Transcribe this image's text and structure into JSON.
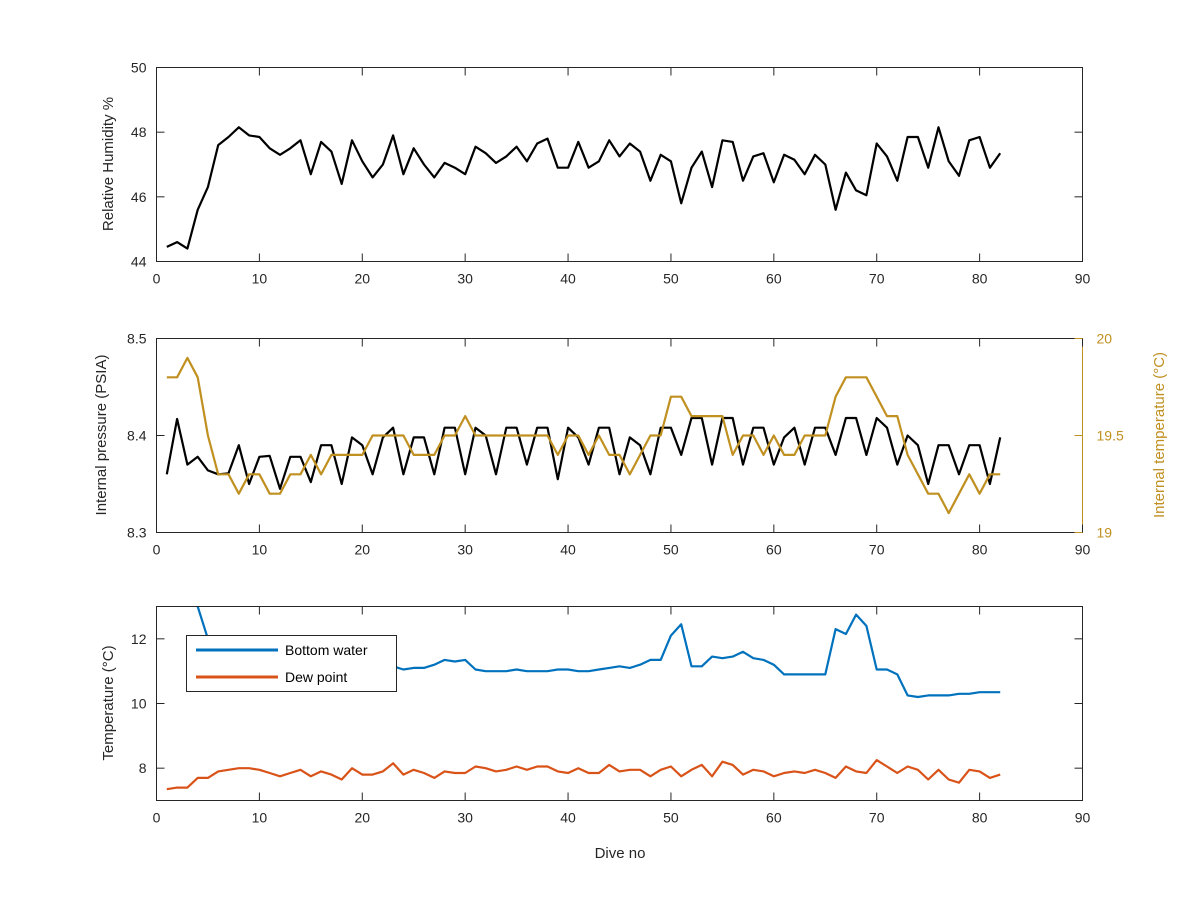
{
  "chart_data": [
    {
      "type": "line",
      "title": "",
      "xlabel": "",
      "ylabel": "Relative Humidity %",
      "xlim": [
        0,
        90
      ],
      "ylim": [
        44,
        50
      ],
      "xticks": [
        0,
        10,
        20,
        30,
        40,
        50,
        60,
        70,
        80,
        90
      ],
      "yticks": [
        44,
        46,
        48,
        50
      ],
      "colors": {
        "humidity": "#000000"
      },
      "series": [
        {
          "x": [
            1,
            2,
            3,
            4,
            5,
            6,
            7,
            8,
            9,
            10,
            11,
            12,
            13,
            14,
            15,
            16,
            17,
            18,
            19,
            20,
            21,
            22,
            23,
            24,
            25,
            26,
            27,
            28,
            29,
            30,
            31,
            32,
            33,
            34,
            35,
            36,
            37,
            38,
            39,
            40,
            41,
            42,
            43,
            44,
            45,
            46,
            47,
            48,
            49,
            50,
            51,
            52,
            53,
            54,
            55,
            56,
            57,
            58,
            59,
            60,
            61,
            62,
            63,
            64,
            65,
            66,
            67,
            68,
            69,
            70,
            71,
            72,
            73,
            74,
            75,
            76,
            77,
            78,
            79,
            80,
            81,
            82
          ],
          "values": [
            44.45,
            44.6,
            44.4,
            45.6,
            46.3,
            47.6,
            47.85,
            48.15,
            47.9,
            47.85,
            47.5,
            47.3,
            47.5,
            47.75,
            46.7,
            47.7,
            47.4,
            46.4,
            47.75,
            47.1,
            46.6,
            47.0,
            47.9,
            46.7,
            47.5,
            47.0,
            46.6,
            47.05,
            46.9,
            46.7,
            47.55,
            47.35,
            47.05,
            47.25,
            47.55,
            47.1,
            47.65,
            47.8,
            46.9,
            46.9,
            47.7,
            46.9,
            47.1,
            47.75,
            47.25,
            47.65,
            47.4,
            46.5,
            47.3,
            47.1,
            45.8,
            46.9,
            47.4,
            46.3,
            47.75,
            47.7,
            46.5,
            47.25,
            47.35,
            46.45,
            47.3,
            47.15,
            46.7,
            47.3,
            47.0,
            45.6,
            46.75,
            46.2,
            46.05,
            47.65,
            47.25,
            46.5,
            47.85,
            47.85,
            46.9,
            48.15,
            47.1,
            46.65,
            47.75,
            47.85,
            46.9,
            47.35
          ]
        }
      ]
    },
    {
      "type": "line",
      "title": "",
      "xlabel": "",
      "ylabel": "Internal pressure (PSIA)",
      "ylabel_right": "Internal temperature (°C)",
      "xlim": [
        0,
        90
      ],
      "ylim": [
        8.3,
        8.5
      ],
      "ylim_right": [
        19,
        20
      ],
      "xticks": [
        0,
        10,
        20,
        30,
        40,
        50,
        60,
        70,
        80,
        90
      ],
      "yticks": [
        8.3,
        8.4,
        8.5
      ],
      "yticks_right": [
        19,
        19.5,
        20
      ],
      "colors": {
        "pressure": "#000000",
        "temperature": "#C09020"
      },
      "series": [
        {
          "axis": "left",
          "x": [
            1,
            2,
            3,
            4,
            5,
            6,
            7,
            8,
            9,
            10,
            11,
            12,
            13,
            14,
            15,
            16,
            17,
            18,
            19,
            20,
            21,
            22,
            23,
            24,
            25,
            26,
            27,
            28,
            29,
            30,
            31,
            32,
            33,
            34,
            35,
            36,
            37,
            38,
            39,
            40,
            41,
            42,
            43,
            44,
            45,
            46,
            47,
            48,
            49,
            50,
            51,
            52,
            53,
            54,
            55,
            56,
            57,
            58,
            59,
            60,
            61,
            62,
            63,
            64,
            65,
            66,
            67,
            68,
            69,
            70,
            71,
            72,
            73,
            74,
            75,
            76,
            77,
            78,
            79,
            80,
            81,
            82
          ],
          "values": [
            8.36,
            8.417,
            8.37,
            8.378,
            8.364,
            8.36,
            8.361,
            8.39,
            8.35,
            8.378,
            8.379,
            8.345,
            8.378,
            8.378,
            8.352,
            8.39,
            8.39,
            8.35,
            8.398,
            8.39,
            8.36,
            8.398,
            8.408,
            8.36,
            8.398,
            8.398,
            8.36,
            8.408,
            8.408,
            8.36,
            8.408,
            8.4,
            8.36,
            8.408,
            8.408,
            8.37,
            8.408,
            8.408,
            8.355,
            8.408,
            8.398,
            8.37,
            8.408,
            8.408,
            8.36,
            8.398,
            8.39,
            8.36,
            8.408,
            8.408,
            8.38,
            8.418,
            8.418,
            8.37,
            8.418,
            8.418,
            8.37,
            8.408,
            8.408,
            8.37,
            8.398,
            8.408,
            8.37,
            8.408,
            8.408,
            8.38,
            8.418,
            8.418,
            8.38,
            8.418,
            8.408,
            8.37,
            8.4,
            8.39,
            8.35,
            8.39,
            8.39,
            8.36,
            8.39,
            8.39,
            8.35,
            8.398
          ]
        },
        {
          "axis": "right",
          "x": [
            1,
            2,
            3,
            4,
            5,
            6,
            7,
            8,
            9,
            10,
            11,
            12,
            13,
            14,
            15,
            16,
            17,
            18,
            19,
            20,
            21,
            22,
            23,
            24,
            25,
            26,
            27,
            28,
            29,
            30,
            31,
            32,
            33,
            34,
            35,
            36,
            37,
            38,
            39,
            40,
            41,
            42,
            43,
            44,
            45,
            46,
            47,
            48,
            49,
            50,
            51,
            52,
            53,
            54,
            55,
            56,
            57,
            58,
            59,
            60,
            61,
            62,
            63,
            64,
            65,
            66,
            67,
            68,
            69,
            70,
            71,
            72,
            73,
            74,
            75,
            76,
            77,
            78,
            79,
            80,
            81,
            82
          ],
          "values": [
            19.8,
            19.8,
            19.9,
            19.8,
            19.5,
            19.3,
            19.3,
            19.2,
            19.3,
            19.3,
            19.2,
            19.2,
            19.3,
            19.3,
            19.4,
            19.3,
            19.4,
            19.4,
            19.4,
            19.4,
            19.5,
            19.5,
            19.5,
            19.5,
            19.4,
            19.4,
            19.4,
            19.5,
            19.5,
            19.6,
            19.5,
            19.5,
            19.5,
            19.5,
            19.5,
            19.5,
            19.5,
            19.5,
            19.4,
            19.5,
            19.5,
            19.4,
            19.5,
            19.4,
            19.4,
            19.3,
            19.4,
            19.5,
            19.5,
            19.7,
            19.7,
            19.6,
            19.6,
            19.6,
            19.6,
            19.4,
            19.5,
            19.5,
            19.4,
            19.5,
            19.4,
            19.4,
            19.5,
            19.5,
            19.5,
            19.7,
            19.8,
            19.8,
            19.8,
            19.7,
            19.6,
            19.6,
            19.4,
            19.3,
            19.2,
            19.2,
            19.1,
            19.2,
            19.3,
            19.2,
            19.3,
            19.3
          ]
        }
      ]
    },
    {
      "type": "line",
      "title": "",
      "xlabel": "Dive no",
      "ylabel": "Temperature (°C)",
      "xlim": [
        0,
        90
      ],
      "ylim": [
        7,
        13
      ],
      "xticks": [
        0,
        10,
        20,
        30,
        40,
        50,
        60,
        70,
        80,
        90
      ],
      "yticks": [
        8,
        10,
        12
      ],
      "legend_position": "top-left",
      "colors": {
        "Bottom water": "#0072BD",
        "Dew point": "#D95319"
      },
      "series": [
        {
          "name": "Bottom water",
          "x": [
            4,
            5,
            6,
            7,
            8,
            9,
            10,
            11,
            12,
            13,
            14,
            15,
            16,
            17,
            18,
            19,
            20,
            21,
            22,
            23,
            24,
            25,
            26,
            27,
            28,
            29,
            30,
            31,
            32,
            33,
            34,
            35,
            36,
            37,
            38,
            39,
            40,
            41,
            42,
            43,
            44,
            45,
            46,
            47,
            48,
            49,
            50,
            51,
            52,
            53,
            54,
            55,
            56,
            57,
            58,
            59,
            60,
            61,
            62,
            63,
            64,
            65,
            66,
            67,
            68,
            69,
            70,
            71,
            72,
            73,
            74,
            75,
            76,
            77,
            78,
            79,
            80,
            81,
            82
          ],
          "values": [
            13.0,
            12.0,
            11.75,
            11.6,
            11.55,
            11.5,
            11.45,
            11.4,
            11.35,
            11.3,
            11.25,
            11.2,
            11.2,
            11.15,
            11.1,
            11.1,
            11.1,
            11.15,
            11.1,
            11.15,
            11.05,
            11.1,
            11.1,
            11.2,
            11.35,
            11.3,
            11.35,
            11.05,
            11.0,
            11.0,
            11.0,
            11.05,
            11.0,
            11.0,
            11.0,
            11.05,
            11.05,
            11.0,
            11.0,
            11.05,
            11.1,
            11.15,
            11.1,
            11.2,
            11.35,
            11.35,
            12.1,
            12.45,
            11.15,
            11.15,
            11.45,
            11.4,
            11.45,
            11.6,
            11.4,
            11.35,
            11.2,
            10.9,
            10.9,
            10.9,
            10.9,
            10.9,
            12.3,
            12.15,
            12.75,
            12.4,
            11.05,
            11.05,
            10.9,
            10.25,
            10.2,
            10.25,
            10.25,
            10.25,
            10.3,
            10.3,
            10.35,
            10.35,
            10.35
          ]
        },
        {
          "name": "Dew point",
          "x": [
            1,
            2,
            3,
            4,
            5,
            6,
            7,
            8,
            9,
            10,
            11,
            12,
            13,
            14,
            15,
            16,
            17,
            18,
            19,
            20,
            21,
            22,
            23,
            24,
            25,
            26,
            27,
            28,
            29,
            30,
            31,
            32,
            33,
            34,
            35,
            36,
            37,
            38,
            39,
            40,
            41,
            42,
            43,
            44,
            45,
            46,
            47,
            48,
            49,
            50,
            51,
            52,
            53,
            54,
            55,
            56,
            57,
            58,
            59,
            60,
            61,
            62,
            63,
            64,
            65,
            66,
            67,
            68,
            69,
            70,
            71,
            72,
            73,
            74,
            75,
            76,
            77,
            78,
            79,
            80,
            81,
            82
          ],
          "values": [
            7.35,
            7.4,
            7.4,
            7.7,
            7.7,
            7.9,
            7.95,
            8.0,
            8.0,
            7.95,
            7.85,
            7.75,
            7.85,
            7.95,
            7.75,
            7.9,
            7.8,
            7.65,
            8.0,
            7.8,
            7.8,
            7.9,
            8.15,
            7.8,
            7.95,
            7.85,
            7.7,
            7.9,
            7.85,
            7.85,
            8.05,
            8.0,
            7.9,
            7.95,
            8.05,
            7.95,
            8.05,
            8.05,
            7.9,
            7.85,
            8.0,
            7.85,
            7.85,
            8.1,
            7.9,
            7.95,
            7.95,
            7.75,
            7.95,
            8.05,
            7.75,
            7.95,
            8.1,
            7.75,
            8.2,
            8.1,
            7.8,
            7.95,
            7.9,
            7.75,
            7.85,
            7.9,
            7.85,
            7.95,
            7.85,
            7.7,
            8.05,
            7.9,
            7.85,
            8.25,
            8.05,
            7.85,
            8.05,
            7.95,
            7.65,
            7.95,
            7.65,
            7.55,
            7.95,
            7.9,
            7.7,
            7.8
          ]
        }
      ]
    }
  ]
}
